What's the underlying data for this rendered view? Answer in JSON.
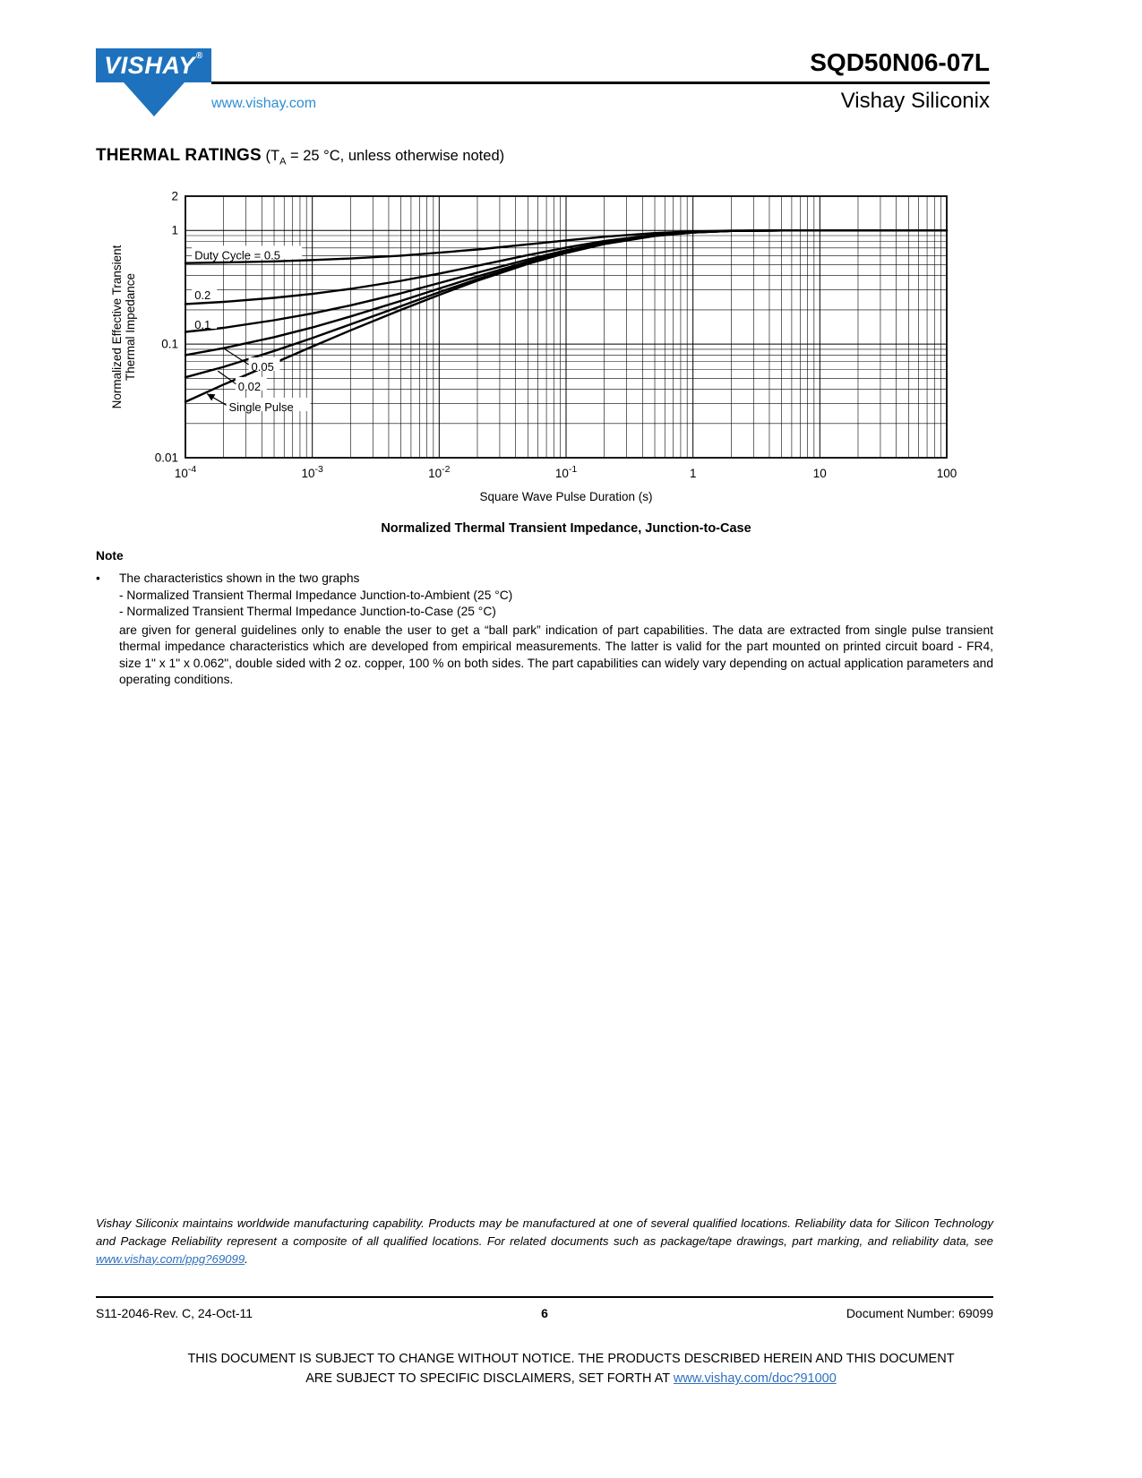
{
  "header": {
    "logo_text": "VISHAY",
    "logo_reg": "®",
    "website": "www.vishay.com",
    "part_number": "SQD50N06-07L",
    "brand": "Vishay Siliconix"
  },
  "section": {
    "title": "THERMAL RATINGS",
    "cond_pre": " (T",
    "cond_sub": "A",
    "cond_post": " = 25 °C, unless otherwise noted)"
  },
  "chart_data": {
    "type": "line",
    "xscale": "log",
    "yscale": "log",
    "xlim": [
      0.0001,
      100
    ],
    "ylim": [
      0.01,
      2
    ],
    "grid": true,
    "xlabel": "Square Wave Pulse Duration (s)",
    "ylabel_lines": [
      "Normalized Effective Transient",
      "Thermal Impedance"
    ],
    "caption": "Normalized Thermal Transient Impedance, Junction-to-Case",
    "x_ticks": [
      {
        "v": 0.0001,
        "base": "10",
        "exp": "-4"
      },
      {
        "v": 0.001,
        "base": "10",
        "exp": "-3"
      },
      {
        "v": 0.01,
        "base": "10",
        "exp": "-2"
      },
      {
        "v": 0.1,
        "base": "10",
        "exp": "-1"
      },
      {
        "v": 1,
        "base": "1"
      },
      {
        "v": 10,
        "base": "10"
      },
      {
        "v": 100,
        "base": "100"
      }
    ],
    "y_ticks": [
      {
        "v": 2,
        "label": "2"
      },
      {
        "v": 1,
        "label": "1"
      },
      {
        "v": 0.1,
        "label": "0.1"
      },
      {
        "v": 0.01,
        "label": "0.01"
      }
    ],
    "x": [
      0.0001,
      0.0002,
      0.0005,
      0.001,
      0.002,
      0.005,
      0.01,
      0.02,
      0.05,
      0.1,
      0.2,
      0.5,
      1,
      2,
      5,
      10,
      20,
      50,
      100
    ],
    "series": [
      {
        "name": "Duty Cycle = 0.5",
        "values": [
          0.516,
          0.522,
          0.534,
          0.548,
          0.566,
          0.6,
          0.636,
          0.68,
          0.754,
          0.816,
          0.879,
          0.947,
          0.979,
          0.994,
          0.999,
          1.0,
          1.0,
          1.0,
          1.0
        ]
      },
      {
        "name": "0.2",
        "values": [
          0.225,
          0.235,
          0.255,
          0.276,
          0.306,
          0.36,
          0.417,
          0.488,
          0.606,
          0.706,
          0.806,
          0.915,
          0.966,
          0.991,
          0.999,
          1.0,
          1.0,
          1.0,
          1.0
        ]
      },
      {
        "name": "0.1",
        "values": [
          0.128,
          0.139,
          0.162,
          0.186,
          0.219,
          0.28,
          0.344,
          0.425,
          0.556,
          0.669,
          0.781,
          0.904,
          0.962,
          0.99,
          0.999,
          1.0,
          1.0,
          1.0,
          1.0
        ]
      },
      {
        "name": "0.05",
        "values": [
          0.08,
          0.092,
          0.115,
          0.14,
          0.175,
          0.24,
          0.308,
          0.393,
          0.532,
          0.65,
          0.769,
          0.898,
          0.96,
          0.989,
          0.999,
          1.0,
          1.0,
          1.0,
          1.0
        ]
      },
      {
        "name": "0.02",
        "values": [
          0.051,
          0.063,
          0.087,
          0.113,
          0.149,
          0.216,
          0.286,
          0.373,
          0.517,
          0.639,
          0.762,
          0.895,
          0.959,
          0.989,
          0.999,
          1.0,
          1.0,
          1.0,
          1.0
        ]
      },
      {
        "name": "Single Pulse",
        "values": [
          0.031,
          0.044,
          0.068,
          0.095,
          0.132,
          0.2,
          0.271,
          0.361,
          0.507,
          0.632,
          0.757,
          0.893,
          0.958,
          0.989,
          0.999,
          1.0,
          1.0,
          1.0,
          1.0
        ]
      }
    ],
    "annotations": [
      {
        "text": "Duty Cycle = 0.5",
        "x": 0.000118,
        "y": 0.6
      },
      {
        "text": "0.2",
        "x": 0.000118,
        "y": 0.267
      },
      {
        "text": "0.1",
        "x": 0.000118,
        "y": 0.147
      },
      {
        "text": "0.05",
        "x": 0.00033,
        "y": 0.0625,
        "leader": {
          "x1": 0.000315,
          "y1": 0.066,
          "x2": 0.000205,
          "y2": 0.09
        }
      },
      {
        "text": "0.02",
        "x": 0.00026,
        "y": 0.042,
        "leader": {
          "x1": 0.00025,
          "y1": 0.0445,
          "x2": 0.00018,
          "y2": 0.058
        }
      },
      {
        "text": "Single Pulse",
        "x": 0.00022,
        "y": 0.0276,
        "leader": {
          "x1": 0.00021,
          "y1": 0.029,
          "x2": 0.000148,
          "y2": 0.0365,
          "arrow": true
        }
      }
    ]
  },
  "note": {
    "title": "Note",
    "bullet": "•",
    "line1": "The characteristics shown in the two graphs",
    "line2": "- Normalized Transient Thermal Impedance Junction-to-Ambient (25 °C)",
    "line3": "- Normalized Transient Thermal Impedance Junction-to-Case (25 °C)",
    "paragraph": "are given for general guidelines only to enable the user to get a “ball park” indication of part capabilities. The data are extracted from single pulse transient thermal impedance characteristics which are developed from empirical measurements. The latter is valid for the part mounted on printed circuit board - FR4, size 1\" x 1\" x 0.062\", double sided with 2 oz. copper, 100 % on both sides. The part capabilities can widely vary depending on actual application parameters and operating conditions."
  },
  "legal": {
    "text": "Vishay Siliconix maintains worldwide manufacturing capability. Products may be manufactured at one of several qualified locations. Reliability data for Silicon Technology and Package Reliability represent a composite of all qualified locations. For related documents such as package/tape drawings, part marking, and reliability data, see ",
    "link": "www.vishay.com/ppg?69099",
    "after": "."
  },
  "footer": {
    "left": "S11-2046-Rev. C, 24-Oct-11",
    "page": "6",
    "right": "Document Number: 69099"
  },
  "disclaimer": {
    "line1": "THIS DOCUMENT IS SUBJECT TO CHANGE WITHOUT NOTICE. THE PRODUCTS DESCRIBED HEREIN AND THIS DOCUMENT",
    "line2_pre": "ARE SUBJECT TO SPECIFIC DISCLAIMERS, SET FORTH AT ",
    "link": "www.vishay.com/doc?91000"
  }
}
